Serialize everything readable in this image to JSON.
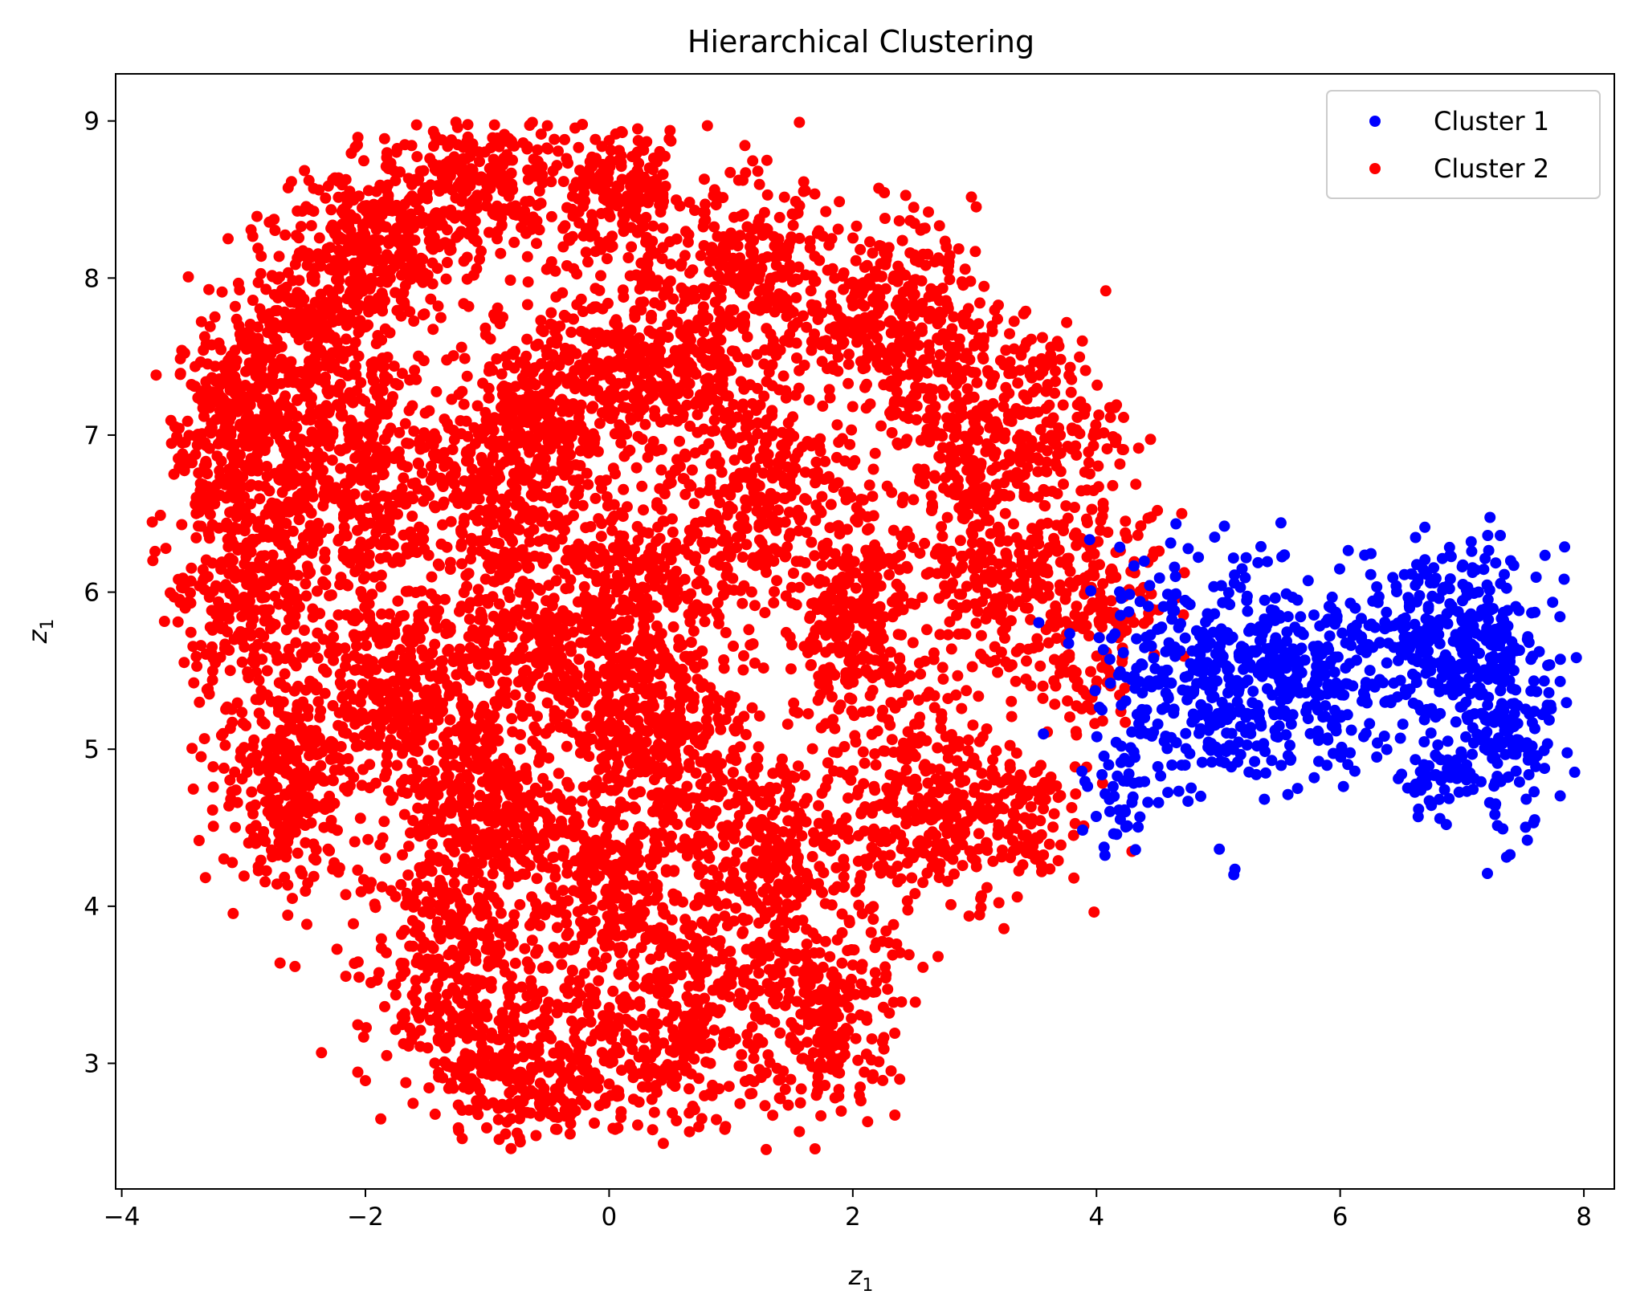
{
  "chart_data": {
    "type": "scatter",
    "title": "Hierarchical Clustering",
    "xlabel": "z",
    "xlabel_sub": "1",
    "ylabel": "z",
    "ylabel_sub": "1",
    "xlim": [
      -4.05,
      8.25
    ],
    "ylim": [
      2.2,
      9.3
    ],
    "xticks": [
      -4,
      -2,
      0,
      2,
      4,
      6,
      8
    ],
    "yticks": [
      3,
      4,
      5,
      6,
      7,
      8,
      9
    ],
    "xtick_labels": [
      "−4",
      "−2",
      "0",
      "2",
      "4",
      "6",
      "8"
    ],
    "ytick_labels": [
      "3",
      "4",
      "5",
      "6",
      "7",
      "8",
      "9"
    ],
    "grid": false,
    "legend_position": "top-right",
    "series": [
      {
        "name": "Cluster 1",
        "color": "#0000ff",
        "blobs": [
          {
            "cx": 4.85,
            "cy": 5.45,
            "sx": 0.45,
            "sy": 0.4,
            "n": 330
          },
          {
            "cx": 5.7,
            "cy": 5.45,
            "sx": 0.45,
            "sy": 0.3,
            "n": 230
          },
          {
            "cx": 6.9,
            "cy": 5.7,
            "sx": 0.4,
            "sy": 0.28,
            "n": 340
          },
          {
            "cx": 7.3,
            "cy": 5.05,
            "sx": 0.22,
            "sy": 0.3,
            "n": 160
          },
          {
            "cx": 6.75,
            "cy": 4.8,
            "sx": 0.12,
            "sy": 0.1,
            "n": 40
          },
          {
            "cx": 4.2,
            "cy": 4.65,
            "sx": 0.15,
            "sy": 0.15,
            "n": 30
          }
        ],
        "extra_points": [
          [
            5.05,
            6.42
          ],
          [
            4.97,
            6.35
          ],
          [
            5.35,
            6.29
          ],
          [
            4.32,
            4.36
          ],
          [
            4.1,
            4.9
          ],
          [
            6.64,
            4.57
          ],
          [
            7.7,
            5.28
          ],
          [
            7.55,
            5.68
          ],
          [
            6.3,
            4.95
          ],
          [
            5.65,
            4.75
          ]
        ]
      },
      {
        "name": "Cluster 2",
        "color": "#ff0000",
        "blobs": [
          {
            "cx": -3.0,
            "cy": 7.1,
            "sx": 0.28,
            "sy": 0.3,
            "n": 320
          },
          {
            "cx": -3.0,
            "cy": 6.1,
            "sx": 0.35,
            "sy": 0.45,
            "n": 380
          },
          {
            "cx": -2.6,
            "cy": 4.8,
            "sx": 0.3,
            "sy": 0.35,
            "n": 300
          },
          {
            "cx": -2.4,
            "cy": 7.7,
            "sx": 0.35,
            "sy": 0.35,
            "n": 300
          },
          {
            "cx": -1.85,
            "cy": 8.2,
            "sx": 0.35,
            "sy": 0.25,
            "n": 280
          },
          {
            "cx": -2.1,
            "cy": 6.8,
            "sx": 0.4,
            "sy": 0.4,
            "n": 380
          },
          {
            "cx": -1.7,
            "cy": 5.4,
            "sx": 0.4,
            "sy": 0.4,
            "n": 420
          },
          {
            "cx": -1.1,
            "cy": 8.6,
            "sx": 0.4,
            "sy": 0.22,
            "n": 280
          },
          {
            "cx": -0.4,
            "cy": 7.3,
            "sx": 0.35,
            "sy": 0.3,
            "n": 320
          },
          {
            "cx": -0.9,
            "cy": 6.6,
            "sx": 0.35,
            "sy": 0.35,
            "n": 330
          },
          {
            "cx": -1.0,
            "cy": 4.6,
            "sx": 0.35,
            "sy": 0.35,
            "n": 350
          },
          {
            "cx": -1.3,
            "cy": 3.6,
            "sx": 0.38,
            "sy": 0.4,
            "n": 350
          },
          {
            "cx": -0.6,
            "cy": 2.95,
            "sx": 0.4,
            "sy": 0.22,
            "n": 280
          },
          {
            "cx": -0.5,
            "cy": 5.6,
            "sx": 0.35,
            "sy": 0.35,
            "n": 320
          },
          {
            "cx": 0.1,
            "cy": 8.55,
            "sx": 0.3,
            "sy": 0.2,
            "n": 200
          },
          {
            "cx": 0.5,
            "cy": 7.5,
            "sx": 0.35,
            "sy": 0.35,
            "n": 300
          },
          {
            "cx": 0.3,
            "cy": 6.0,
            "sx": 0.35,
            "sy": 0.35,
            "n": 320
          },
          {
            "cx": 0.4,
            "cy": 5.1,
            "sx": 0.35,
            "sy": 0.3,
            "n": 330
          },
          {
            "cx": 0.0,
            "cy": 4.1,
            "sx": 0.35,
            "sy": 0.35,
            "n": 330
          },
          {
            "cx": 0.6,
            "cy": 3.3,
            "sx": 0.38,
            "sy": 0.35,
            "n": 320
          },
          {
            "cx": 1.2,
            "cy": 8.0,
            "sx": 0.3,
            "sy": 0.3,
            "n": 220
          },
          {
            "cx": 1.3,
            "cy": 6.7,
            "sx": 0.35,
            "sy": 0.35,
            "n": 300
          },
          {
            "cx": 1.2,
            "cy": 4.3,
            "sx": 0.35,
            "sy": 0.4,
            "n": 330
          },
          {
            "cx": 1.8,
            "cy": 3.3,
            "sx": 0.28,
            "sy": 0.35,
            "n": 260
          },
          {
            "cx": 2.0,
            "cy": 5.8,
            "sx": 0.3,
            "sy": 0.35,
            "n": 320
          },
          {
            "cx": 2.3,
            "cy": 7.8,
            "sx": 0.35,
            "sy": 0.3,
            "n": 320
          },
          {
            "cx": 2.9,
            "cy": 7.0,
            "sx": 0.35,
            "sy": 0.35,
            "n": 260
          },
          {
            "cx": 2.5,
            "cy": 4.6,
            "sx": 0.4,
            "sy": 0.35,
            "n": 300
          },
          {
            "cx": 3.2,
            "cy": 6.1,
            "sx": 0.35,
            "sy": 0.35,
            "n": 240
          },
          {
            "cx": 3.6,
            "cy": 7.1,
            "sx": 0.3,
            "sy": 0.3,
            "n": 160
          },
          {
            "cx": 3.3,
            "cy": 4.6,
            "sx": 0.3,
            "sy": 0.25,
            "n": 120
          },
          {
            "cx": 4.0,
            "cy": 6.1,
            "sx": 0.3,
            "sy": 0.3,
            "n": 130
          },
          {
            "cx": 3.9,
            "cy": 5.5,
            "sx": 0.2,
            "sy": 0.2,
            "n": 60
          }
        ],
        "extra_points": [
          [
            -3.5,
            6.88
          ],
          [
            -3.35,
            5.66
          ],
          [
            -3.3,
            5.38
          ],
          [
            -3.05,
            4.66
          ],
          [
            -2.9,
            4.4
          ],
          [
            -2.6,
            4.05
          ],
          [
            -1.44,
            8.84
          ],
          [
            2.5,
            8.45
          ],
          [
            1.12,
            8.67
          ],
          [
            4.5,
            6.52
          ],
          [
            4.7,
            6.5
          ],
          [
            4.2,
            5.24
          ],
          [
            4.05,
            5.18
          ],
          [
            3.55,
            4.22
          ],
          [
            3.05,
            4.05
          ],
          [
            -0.85,
            2.55
          ],
          [
            -0.6,
            2.54
          ],
          [
            0.05,
            2.58
          ],
          [
            0.95,
            2.58
          ],
          [
            2.7,
            3.68
          ]
        ]
      }
    ]
  }
}
